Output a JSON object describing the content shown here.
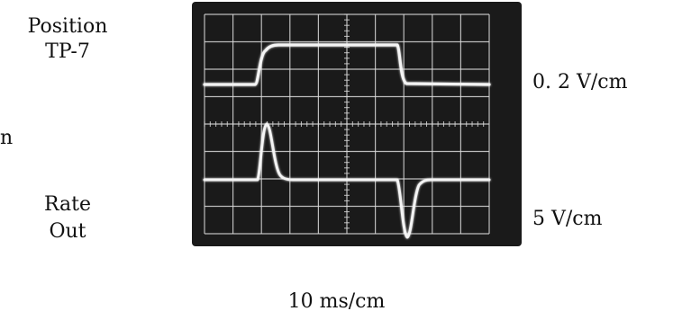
{
  "labels": {
    "top_trace_name_line1": "Position",
    "top_trace_name_line2": "TP-7",
    "partial_left_text": "n",
    "bottom_trace_name_line1": "Rate",
    "bottom_trace_name_line2": "Out",
    "top_trace_scale": "0. 2 V/cm",
    "bottom_trace_scale": "5 V/cm",
    "time_scale": "10 ms/cm"
  },
  "screen": {
    "background_color": "#1a1a1a",
    "trace_color": "#f4f4f4",
    "grid_color": "#d9d9d9",
    "divisions_x": 10,
    "divisions_y": 8
  }
}
